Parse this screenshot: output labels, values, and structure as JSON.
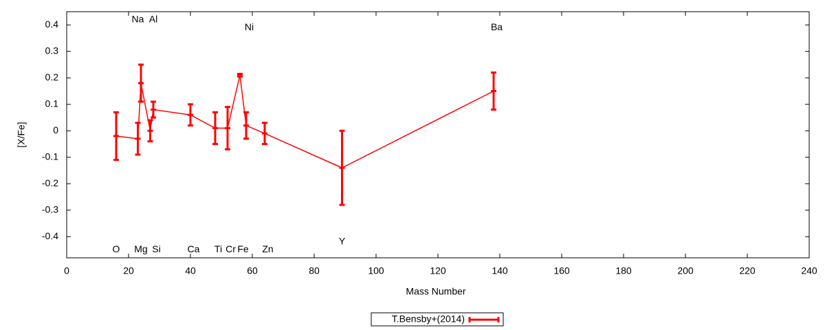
{
  "chart_data": {
    "type": "errorbar-line",
    "x_label": "Mass Number",
    "y_label": "[X/Fe]",
    "xlim": [
      0,
      240
    ],
    "ylim": [
      -0.48,
      0.45
    ],
    "xticks": [
      0,
      20,
      40,
      60,
      80,
      100,
      120,
      140,
      160,
      180,
      200,
      220,
      240
    ],
    "yticks": [
      -0.4,
      -0.3,
      -0.2,
      -0.1,
      0,
      0.1,
      0.2,
      0.3,
      0.4
    ],
    "legend": "bottom",
    "series": [
      {
        "name": "T.Bensby+(2014)",
        "color": "#ff0000",
        "x": [
          16,
          23,
          24,
          27,
          28,
          40,
          48,
          52,
          56,
          58,
          64,
          89,
          138
        ],
        "values": [
          -0.02,
          -0.03,
          0.18,
          0.0,
          0.08,
          0.06,
          0.01,
          0.01,
          0.21,
          0.02,
          -0.01,
          -0.14,
          0.15
        ],
        "errors": [
          0.09,
          0.06,
          0.07,
          0.04,
          0.03,
          0.04,
          0.06,
          0.08,
          0.005,
          0.05,
          0.04,
          0.14,
          0.07
        ]
      }
    ],
    "labels": [
      {
        "text": "O",
        "x": 16,
        "y": -0.45
      },
      {
        "text": "Na",
        "x": 23,
        "y": 0.42
      },
      {
        "text": "Mg",
        "x": 24,
        "y": -0.45
      },
      {
        "text": "Al",
        "x": 28,
        "y": 0.42
      },
      {
        "text": "Si",
        "x": 29,
        "y": -0.45
      },
      {
        "text": "Ca",
        "x": 41,
        "y": -0.45
      },
      {
        "text": "Ti",
        "x": 49,
        "y": -0.45
      },
      {
        "text": "Cr",
        "x": 53,
        "y": -0.45
      },
      {
        "text": "Fe",
        "x": 57,
        "y": -0.45
      },
      {
        "text": "Ni",
        "x": 59,
        "y": 0.39
      },
      {
        "text": "Zn",
        "x": 65,
        "y": -0.45
      },
      {
        "text": "Y",
        "x": 89,
        "y": -0.42
      },
      {
        "text": "Ba",
        "x": 139,
        "y": 0.39
      }
    ]
  }
}
